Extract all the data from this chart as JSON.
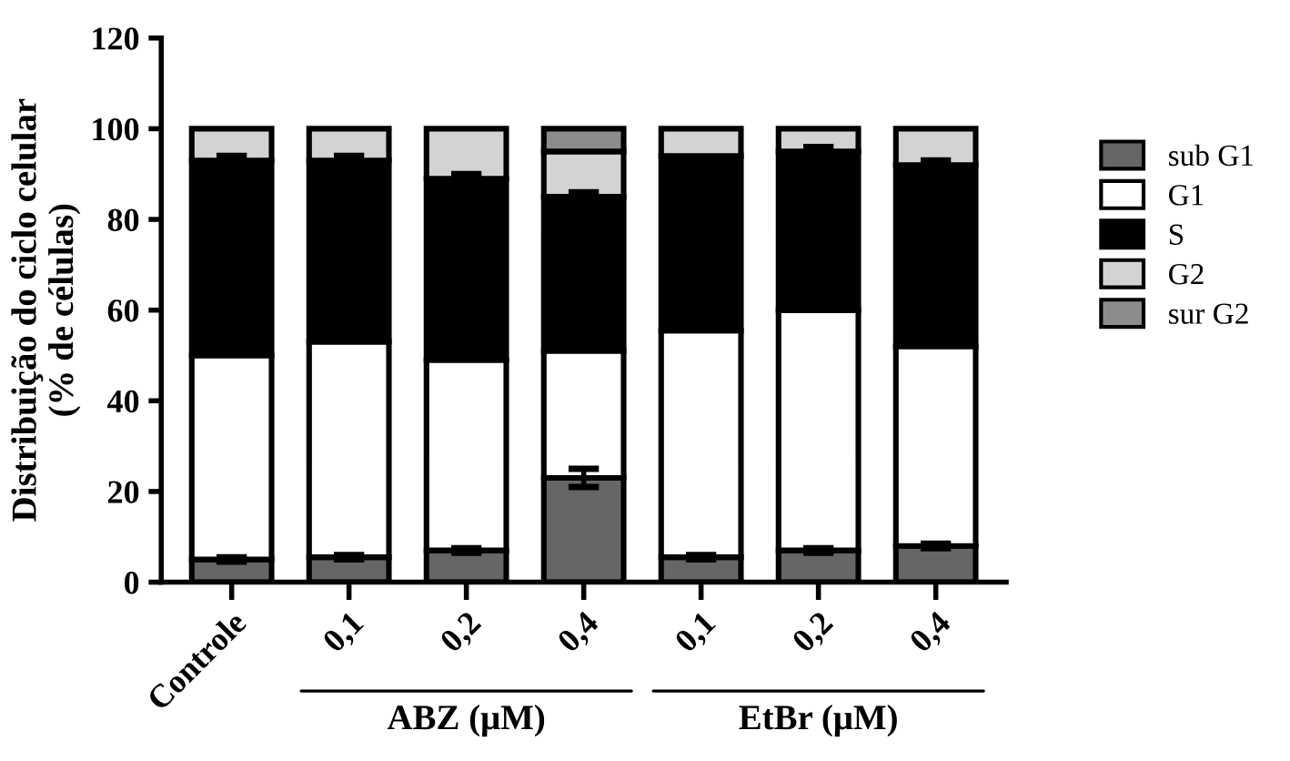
{
  "chart_data": {
    "type": "bar",
    "stacked": true,
    "ylabel": "Distribuição do ciclo celular\n(% de células)",
    "categories": [
      "Controle",
      "0,1",
      "0,2",
      "0,4",
      "0,1",
      "0,2",
      "0,4"
    ],
    "series": [
      {
        "name": "sub G1",
        "color": "#666666",
        "values": [
          5,
          5.5,
          7,
          23,
          5.5,
          7,
          8
        ],
        "errors": [
          0.5,
          0.5,
          0.5,
          2,
          0.5,
          0.5,
          0.5
        ]
      },
      {
        "name": "G1",
        "color": "#ffffff",
        "values": [
          45,
          47.5,
          42,
          28,
          50,
          53,
          44
        ]
      },
      {
        "name": "S",
        "color": "#000000",
        "values": [
          43,
          40,
          40,
          34,
          38.5,
          35,
          40
        ],
        "errors": [
          1,
          1,
          1,
          1,
          null,
          1,
          1
        ]
      },
      {
        "name": "G2",
        "color": "#d3d3d3",
        "values": [
          7,
          7,
          11,
          10,
          6,
          5,
          8
        ]
      },
      {
        "name": "sur G2",
        "color": "#8c8c8c",
        "values": [
          null,
          null,
          null,
          5,
          null,
          null,
          null
        ]
      }
    ],
    "annotations": [
      "ABZ (μM)",
      "EtBr (μM)"
    ],
    "ylim": [
      0,
      120
    ],
    "yticks": [
      0,
      20,
      40,
      60,
      80,
      100,
      120
    ],
    "grid": false,
    "legend": "right"
  }
}
